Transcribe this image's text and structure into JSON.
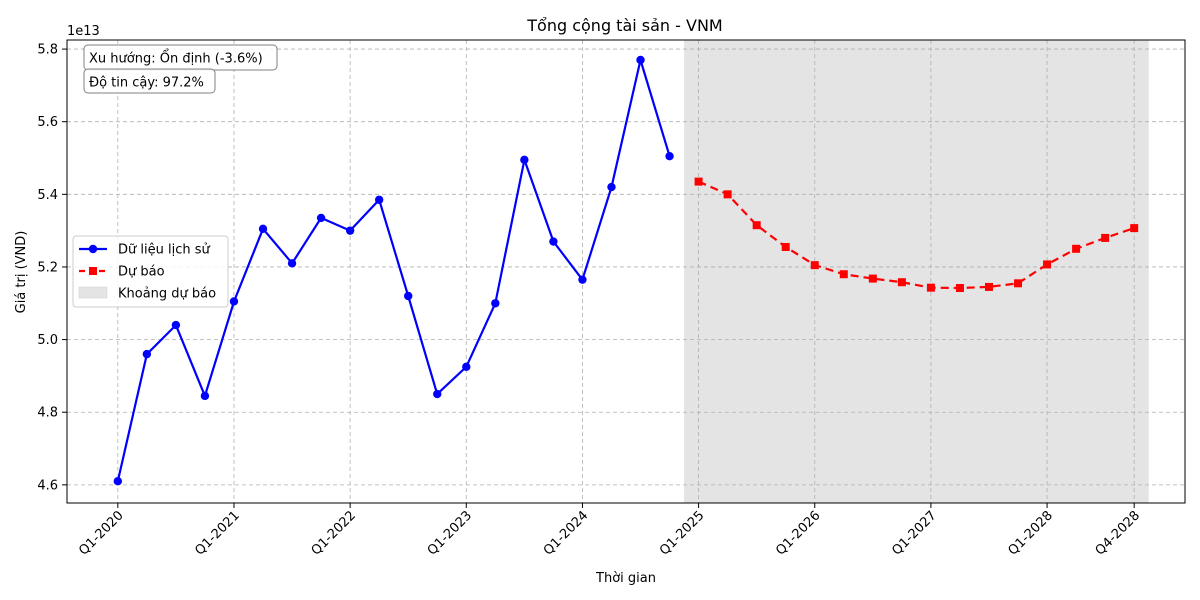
{
  "chart_data": {
    "type": "line",
    "title": "Tổng cộng tài sản - VNM",
    "xlabel": "Thời gian",
    "ylabel": "Giá trị (VND)",
    "y_multiplier": "1e13",
    "ylim": [
      4.55,
      5.825
    ],
    "yticks": [
      4.6,
      4.8,
      5.0,
      5.2,
      5.4,
      5.6,
      5.8
    ],
    "ytick_labels": [
      "4.6",
      "4.8",
      "5.0",
      "5.2",
      "5.4",
      "5.6",
      "5.8"
    ],
    "xticks": [
      "Q1-2020",
      "Q1-2021",
      "Q1-2022",
      "Q1-2023",
      "Q1-2024",
      "Q1-2025",
      "Q1-2026",
      "Q1-2027",
      "Q1-2028",
      "Q4-2028"
    ],
    "grid": true,
    "legend_position": "center-left",
    "series": [
      {
        "name": "Dữ liệu lịch sử",
        "style": "solid",
        "marker": "circle",
        "color": "#0000ff",
        "x": [
          "Q1-2020",
          "Q2-2020",
          "Q3-2020",
          "Q4-2020",
          "Q1-2021",
          "Q2-2021",
          "Q3-2021",
          "Q4-2021",
          "Q1-2022",
          "Q2-2022",
          "Q3-2022",
          "Q4-2022",
          "Q1-2023",
          "Q2-2023",
          "Q3-2023",
          "Q4-2023",
          "Q1-2024",
          "Q2-2024",
          "Q3-2024",
          "Q4-2024"
        ],
        "values": [
          4.61,
          4.96,
          5.04,
          4.845,
          5.105,
          5.305,
          5.21,
          5.335,
          5.3,
          5.385,
          5.12,
          4.85,
          4.925,
          5.1,
          5.495,
          5.27,
          5.165,
          5.42,
          5.77,
          5.505
        ]
      },
      {
        "name": "Dự báo",
        "style": "dashed",
        "marker": "square",
        "color": "#ff0000",
        "x": [
          "Q1-2025",
          "Q2-2025",
          "Q3-2025",
          "Q4-2025",
          "Q1-2026",
          "Q2-2026",
          "Q3-2026",
          "Q4-2026",
          "Q1-2027",
          "Q2-2027",
          "Q3-2027",
          "Q4-2027",
          "Q1-2028",
          "Q2-2028",
          "Q3-2028",
          "Q4-2028"
        ],
        "values": [
          5.435,
          5.4,
          5.315,
          5.255,
          5.205,
          5.18,
          5.168,
          5.158,
          5.143,
          5.142,
          5.145,
          5.155,
          5.207,
          5.25,
          5.28,
          5.307
        ]
      }
    ],
    "forecast_band": {
      "name": "Khoảng dự báo",
      "color": "#e4e4e4",
      "from": "Q4-2024",
      "to": "Q4-2028"
    },
    "annotations": [
      "Xu hướng: Ổn định (-3.6%)",
      "Độ tin cậy: 97.2%"
    ]
  }
}
